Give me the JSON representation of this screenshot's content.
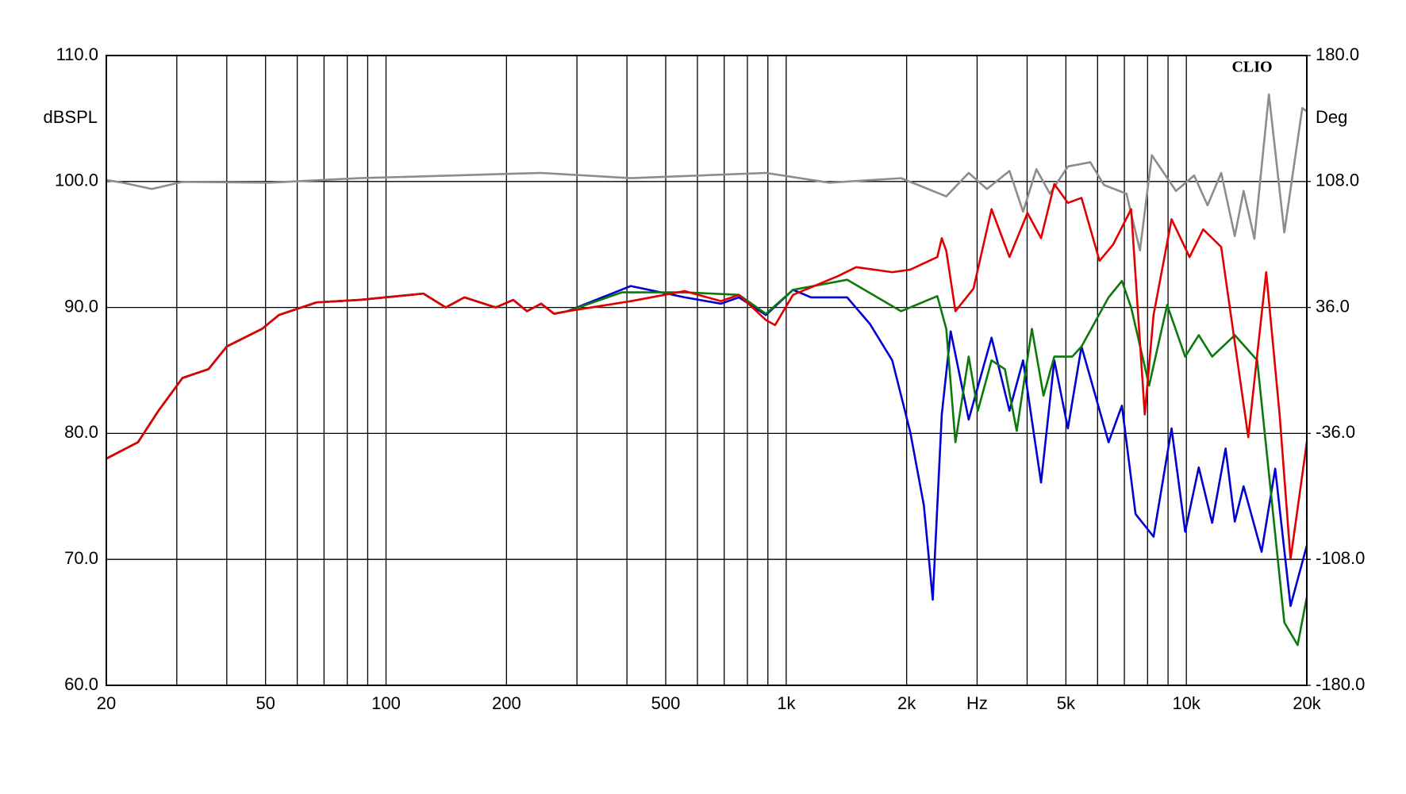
{
  "chart_data": {
    "type": "line",
    "brand": "CLIO",
    "ylabel": "dBSPL",
    "y2label": "Deg",
    "xscale": "log",
    "grid": true,
    "xlim": [
      20,
      20000
    ],
    "xticks": [
      20,
      50,
      100,
      200,
      500,
      {
        "value": 1000,
        "label": "1k"
      },
      {
        "value": 2000,
        "label": "2k"
      },
      {
        "value": 3000,
        "label": "Hz"
      },
      {
        "value": 5000,
        "label": "5k"
      },
      {
        "value": 10000,
        "label": "10k"
      },
      {
        "value": 20000,
        "label": "20k"
      }
    ],
    "xminor": [
      30,
      40,
      60,
      70,
      80,
      90,
      300,
      400,
      600,
      700,
      800,
      900,
      4000,
      6000,
      7000,
      8000,
      9000
    ],
    "ylim": [
      60,
      110
    ],
    "yticks": [
      {
        "value": 110,
        "label": "110.0"
      },
      {
        "value": 100,
        "label": "100.0"
      },
      {
        "value": 90,
        "label": "90.0"
      },
      {
        "value": 80,
        "label": "80.0"
      },
      {
        "value": 70,
        "label": "70.0"
      },
      {
        "value": 60,
        "label": "60.0"
      }
    ],
    "y2lim": [
      -180,
      180
    ],
    "y2ticks": [
      {
        "value": 180,
        "label": "180.0"
      },
      {
        "value": 108,
        "label": "108.0"
      },
      {
        "value": 36,
        "label": "36.0"
      },
      {
        "value": -36,
        "label": "-36.0"
      },
      {
        "value": -108,
        "label": "-108.0"
      },
      {
        "value": -180,
        "label": "-180.0"
      }
    ],
    "series": [
      {
        "color": "#e00000",
        "x": [
          20,
          24,
          27,
          31,
          36,
          40,
          49,
          54,
          67,
          86,
          124,
          141,
          157,
          188,
          208,
          225,
          244,
          263,
          284,
          409,
          558,
          687,
          762,
          890,
          938,
          1040,
          1349,
          1496,
          1841,
          2042,
          2386,
          2448,
          2512,
          2648,
          2938,
          3260,
          3614,
          4008,
          4334,
          4678,
          5058,
          5470,
          6068,
          6562,
          7278,
          7872,
          8280,
          9184,
          10186,
          11016,
          12220,
          14280,
          15832,
          17102,
          18212,
          20000
        ],
        "values": [
          78.0,
          79.3,
          81.8,
          84.4,
          85.1,
          86.9,
          88.3,
          89.4,
          90.4,
          90.6,
          91.1,
          90.0,
          90.8,
          90.0,
          90.6,
          89.7,
          90.3,
          89.5,
          89.7,
          90.5,
          91.3,
          90.5,
          91.0,
          89.0,
          88.6,
          91.0,
          92.5,
          93.2,
          92.8,
          93.0,
          94.0,
          95.5,
          94.5,
          89.7,
          91.5,
          97.8,
          94.0,
          97.5,
          95.5,
          99.8,
          98.3,
          98.7,
          93.7,
          95.0,
          97.8,
          81.5,
          89.4,
          97.0,
          94.0,
          96.2,
          94.8,
          79.7,
          92.8,
          81.5,
          70.0,
          79.3
        ]
      },
      {
        "color": "#0a7a0a",
        "x": [
          20,
          24,
          27,
          31,
          36,
          40,
          49,
          54,
          67,
          86,
          124,
          141,
          157,
          188,
          208,
          225,
          244,
          263,
          284,
          389,
          558,
          762,
          890,
          1040,
          1420,
          1937,
          2386,
          2512,
          2648,
          2858,
          3013,
          3260,
          3520,
          3768,
          4112,
          4396,
          4678,
          5188,
          5470,
          6392,
          6902,
          7278,
          8072,
          8954,
          9932,
          10740,
          11600,
          13214,
          15032,
          17572,
          18970,
          20000
        ],
        "values": [
          78.0,
          79.3,
          81.8,
          84.4,
          85.1,
          86.9,
          88.3,
          89.4,
          90.4,
          90.6,
          91.1,
          90.0,
          90.8,
          90.0,
          90.6,
          89.7,
          90.3,
          89.5,
          89.7,
          91.2,
          91.2,
          91.0,
          89.5,
          91.4,
          92.2,
          89.7,
          90.9,
          88.3,
          79.3,
          86.1,
          81.8,
          85.8,
          85.1,
          80.2,
          88.3,
          83.0,
          86.1,
          86.1,
          86.9,
          90.8,
          92.1,
          90.0,
          83.8,
          90.2,
          86.1,
          87.8,
          86.1,
          87.8,
          85.8,
          65.0,
          63.2,
          67.0
        ]
      },
      {
        "color": "#0000d0",
        "x": [
          20,
          24,
          27,
          31,
          36,
          40,
          49,
          54,
          67,
          86,
          124,
          141,
          157,
          188,
          208,
          225,
          244,
          263,
          284,
          409,
          558,
          687,
          762,
          890,
          1040,
          1154,
          1420,
          1618,
          1841,
          2042,
          2208,
          2324,
          2448,
          2577,
          2858,
          3260,
          3614,
          3908,
          4334,
          4678,
          5058,
          5470,
          6392,
          6902,
          7466,
          8280,
          9184,
          9932,
          10740,
          11600,
          12532,
          13214,
          13900,
          15418,
          16674,
          18212,
          20000
        ],
        "values": [
          78.0,
          79.3,
          81.8,
          84.4,
          85.1,
          86.9,
          88.3,
          89.4,
          90.4,
          90.6,
          91.1,
          90.0,
          90.8,
          90.0,
          90.6,
          89.7,
          90.3,
          89.5,
          89.7,
          91.7,
          90.8,
          90.3,
          90.8,
          89.4,
          91.4,
          90.8,
          90.8,
          88.7,
          85.8,
          80.1,
          74.3,
          66.8,
          81.5,
          88.1,
          81.1,
          87.6,
          81.8,
          85.8,
          76.1,
          85.8,
          80.4,
          86.9,
          79.3,
          82.2,
          73.6,
          71.8,
          80.4,
          72.2,
          77.3,
          72.9,
          78.8,
          73.0,
          75.8,
          70.6,
          77.2,
          66.3,
          71.1
        ]
      },
      {
        "color": "#8c8c8c",
        "axis": "y2",
        "x": [
          20,
          22,
          26,
          31,
          51,
          86,
          244,
          409,
          890,
          1281,
          1937,
          2512,
          2858,
          3174,
          3614,
          3908,
          4220,
          4560,
          5058,
          5754,
          6224,
          7086,
          7656,
          8200,
          9420,
          10460,
          11298,
          12220,
          13214,
          13900,
          14792,
          16080,
          17572,
          19486,
          20000
        ],
        "values": [
          108.8,
          107.3,
          103.7,
          107.8,
          107.3,
          109.9,
          112.9,
          109.9,
          112.9,
          107.3,
          109.9,
          99.5,
          112.9,
          103.7,
          114.0,
          90.8,
          115.0,
          101.0,
          116.6,
          119.0,
          106.0,
          101.0,
          68.6,
          123.0,
          102.6,
          111.4,
          94.4,
          112.9,
          76.8,
          102.6,
          75.3,
          157.8,
          78.9,
          150.0,
          148.0
        ]
      }
    ]
  }
}
